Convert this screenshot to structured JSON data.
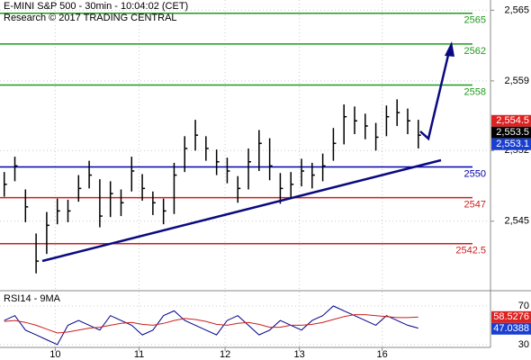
{
  "chart_data": {
    "type": "ohlc",
    "title": "E-MINI S&P 500 - 30min - 10:04:02 (CET)",
    "subtitle": "Research © 2017 TRADING CENTRAL",
    "color": "#000000",
    "xlim": [
      -0.4,
      45.8
    ],
    "xticks": [
      {
        "value": 4.8,
        "label": "10"
      },
      {
        "value": 12.7,
        "label": "11"
      },
      {
        "value": 20.8,
        "label": "12"
      },
      {
        "value": 27.8,
        "label": "13"
      },
      {
        "value": 35.6,
        "label": "16"
      }
    ],
    "ylim": [
      2538.0,
      2566.3
    ],
    "yticks": [
      {
        "value": 2565.3,
        "label": "2,565"
      },
      {
        "value": 2558.4,
        "label": "2,559"
      },
      {
        "value": 2551.6,
        "label": "2,552"
      },
      {
        "value": 2544.7,
        "label": "2,545"
      }
    ],
    "grid": true,
    "high": [
      2549.5,
      2551.0,
      2547.8,
      2543.5,
      2545.6,
      2546.9,
      2546.8,
      2549.2,
      2550.6,
      2548.8,
      2548.6,
      2547.8,
      2551.0,
      2549.3,
      2547.6,
      2546.9,
      2550.4,
      2553.0,
      2554.6,
      2553.0,
      2551.7,
      2550.9,
      2549.1,
      2551.8,
      2553.6,
      2552.8,
      2549.4,
      2549.5,
      2550.8,
      2550.4,
      2551.3,
      2553.8,
      2556.1,
      2555.9,
      2555.2,
      2554.3,
      2556.0,
      2556.6,
      2555.7,
      2554.6
    ],
    "low": [
      2547.1,
      2548.6,
      2544.6,
      2539.6,
      2541.5,
      2544.4,
      2544.6,
      2546.6,
      2547.9,
      2544.1,
      2545.1,
      2545.2,
      2547.6,
      2546.7,
      2545.3,
      2544.4,
      2545.4,
      2549.5,
      2551.6,
      2550.6,
      2549.2,
      2548.4,
      2546.5,
      2547.8,
      2549.6,
      2548.7,
      2546.4,
      2547.0,
      2548.1,
      2547.9,
      2548.6,
      2550.6,
      2552.2,
      2553.2,
      2552.7,
      2551.6,
      2553.0,
      2554.0,
      2553.2,
      2551.8
    ],
    "close": [
      2548.3,
      2550.1,
      2546.1,
      2540.8,
      2544.3,
      2545.7,
      2545.7,
      2547.9,
      2549.2,
      2545.2,
      2547.4,
      2546.5,
      2549.6,
      2547.9,
      2546.5,
      2545.7,
      2549.2,
      2551.8,
      2553.1,
      2551.8,
      2550.5,
      2549.6,
      2547.9,
      2550.5,
      2552.3,
      2550.1,
      2547.9,
      2548.3,
      2549.6,
      2549.2,
      2550.1,
      2552.3,
      2554.9,
      2554.5,
      2554.0,
      2552.9,
      2554.9,
      2555.3,
      2554.5,
      2553.1
    ],
    "levels": [
      {
        "value": 2565,
        "color": "#1f9a1f"
      },
      {
        "value": 2562,
        "color": "#1f9a1f"
      },
      {
        "value": 2558,
        "color": "#1f9a1f"
      },
      {
        "value": 2550,
        "color": "#0000aa"
      },
      {
        "value": 2547,
        "color": "#cc1f1f"
      },
      {
        "value": 2542.5,
        "color": "#cc1f1f"
      }
    ],
    "price_labels": [
      {
        "value": 2554.5,
        "label": "2,554.5",
        "color": "#dd2222"
      },
      {
        "value": 2553.5,
        "label": "2,553.5",
        "color": "#000000"
      },
      {
        "value": 2553.1,
        "label": "2,553.1",
        "color": "#1a3fd0"
      }
    ],
    "rsi": {
      "title": "RSI14 - 9MA",
      "ylim": [
        28,
        84
      ],
      "yticks": [
        30,
        70
      ],
      "series": [
        {
          "color": "#000088",
          "values": [
            55,
            60,
            45,
            40,
            35,
            30,
            50,
            55,
            50,
            45,
            60,
            55,
            50,
            40,
            45,
            60,
            65,
            55,
            50,
            45,
            40,
            55,
            60,
            50,
            40,
            45,
            55,
            50,
            45,
            55,
            60,
            70,
            65,
            60,
            55,
            50,
            60,
            55,
            50,
            47
          ]
        },
        {
          "color": "#cc1f1f",
          "values": [
            54,
            55,
            53,
            50,
            46,
            42,
            43,
            45,
            47,
            48,
            50,
            52,
            53,
            51,
            50,
            52,
            55,
            57,
            56,
            54,
            51,
            50,
            52,
            53,
            51,
            48,
            48,
            50,
            50,
            51,
            53,
            56,
            59,
            61,
            61,
            60,
            59,
            58,
            58,
            58.5
          ]
        }
      ],
      "last_labels": [
        {
          "value": 58.5276,
          "color": "#dd2222"
        },
        {
          "value": 47.0388,
          "color": "#1a3fd0"
        }
      ]
    }
  }
}
